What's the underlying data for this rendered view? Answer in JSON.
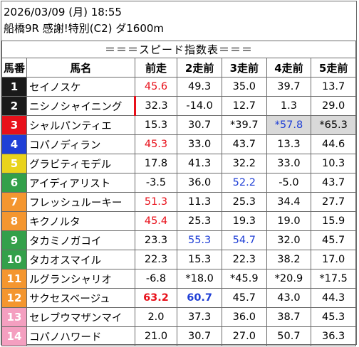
{
  "header": {
    "datetime": "2026/03/09 (月) 18:55",
    "race": "船橋9R 感謝!特別(C2) ダ1600m"
  },
  "table": {
    "title": "＝＝＝スピード指数表＝＝＝",
    "columns": [
      "馬番",
      "馬名",
      "前走",
      "2走前",
      "3走前",
      "4走前",
      "5走前"
    ],
    "rows": [
      {
        "num": "1",
        "name": "セイノスケ",
        "cells": [
          "45.6",
          "49.3",
          "35.0",
          "39.7",
          "13.7"
        ]
      },
      {
        "num": "2",
        "name": "ニシノシャイニング",
        "cells": [
          "32.3",
          "-14.0",
          "12.7",
          "1.3",
          "29.0"
        ]
      },
      {
        "num": "3",
        "name": "シャルパンティエ",
        "cells": [
          "15.3",
          "30.7",
          "*39.7",
          "*57.8",
          "*65.3"
        ]
      },
      {
        "num": "4",
        "name": "コパノディラン",
        "cells": [
          "45.3",
          "33.0",
          "43.7",
          "13.3",
          "44.6"
        ]
      },
      {
        "num": "5",
        "name": "グラビティモデル",
        "cells": [
          "17.8",
          "41.3",
          "32.2",
          "33.0",
          "10.3"
        ]
      },
      {
        "num": "6",
        "name": "アイディアリスト",
        "cells": [
          "-3.5",
          "36.0",
          "52.2",
          "-5.0",
          "43.7"
        ]
      },
      {
        "num": "7",
        "name": "フレッシュルーキー",
        "cells": [
          "51.3",
          "11.3",
          "25.3",
          "34.4",
          "27.7"
        ]
      },
      {
        "num": "8",
        "name": "キクノルタ",
        "cells": [
          "45.4",
          "25.3",
          "19.3",
          "19.0",
          "15.9"
        ]
      },
      {
        "num": "9",
        "name": "タカミノガコイ",
        "cells": [
          "23.3",
          "55.3",
          "54.7",
          "32.0",
          "45.7"
        ]
      },
      {
        "num": "10",
        "name": "タカオスマイル",
        "cells": [
          "22.3",
          "15.3",
          "22.3",
          "38.2",
          "17.0"
        ]
      },
      {
        "num": "11",
        "name": "ルグランシャリオ",
        "cells": [
          "-6.8",
          "*18.0",
          "*45.9",
          "*20.9",
          "*17.5"
        ]
      },
      {
        "num": "12",
        "name": "サクセスベージュ",
        "cells": [
          "63.2",
          "60.7",
          "45.7",
          "43.0",
          "44.3"
        ]
      },
      {
        "num": "13",
        "name": "セレブウマザンマイ",
        "cells": [
          "2.0",
          "37.3",
          "36.0",
          "38.7",
          "45.3"
        ]
      },
      {
        "num": "14",
        "name": "コパノハワード",
        "cells": [
          "21.0",
          "30.7",
          "27.0",
          "50.7",
          "36.3"
        ]
      }
    ]
  },
  "colors": {
    "frame_colors": [
      "#ffffff",
      "#1a1a1a",
      "#e8101a",
      "#1f3fd6",
      "#e9d31c",
      "#33a04a",
      "#f4962f",
      "#f49fc0"
    ],
    "red": "#e8101a",
    "blue": "#1f3fd6"
  }
}
